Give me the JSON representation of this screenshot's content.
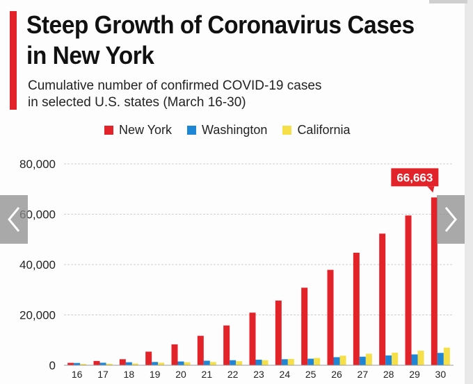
{
  "title_line1": "Steep Growth of Coronavirus Cases",
  "title_line2": "in New York",
  "subtitle_line1": "Cumulative number of confirmed COVID-19 cases",
  "subtitle_line2": "in selected U.S. states (March 16-30)",
  "colors": {
    "new_york": "#e3232a",
    "washington": "#1f86d6",
    "california": "#f5e04a",
    "accent": "#e3232a"
  },
  "nav": {
    "prev_icon": "chevron-left-icon",
    "next_icon": "chevron-right-icon"
  },
  "chart_data": {
    "type": "bar",
    "categories": [
      "16",
      "17",
      "18",
      "19",
      "20",
      "21",
      "22",
      "23",
      "24",
      "25",
      "26",
      "27",
      "28",
      "29",
      "30"
    ],
    "series": [
      {
        "name": "New York",
        "color": "#e3232a",
        "values": [
          950,
          1700,
          2400,
          5400,
          8300,
          11700,
          15800,
          20900,
          25700,
          30800,
          37900,
          44700,
          52300,
          59500,
          66663
        ]
      },
      {
        "name": "Washington",
        "color": "#1f86d6",
        "values": [
          900,
          1000,
          1200,
          1300,
          1500,
          1800,
          2000,
          2200,
          2400,
          2600,
          3200,
          3400,
          3900,
          4300,
          4900
        ]
      },
      {
        "name": "California",
        "color": "#f5e04a",
        "values": [
          500,
          600,
          700,
          1000,
          1200,
          1300,
          1600,
          2000,
          2500,
          2900,
          3800,
          4600,
          5000,
          5800,
          7000
        ]
      }
    ],
    "yticks": [
      "0",
      "20,000",
      "40,000",
      "60,000",
      "80,000"
    ],
    "ylim": [
      0,
      80000
    ],
    "callout": {
      "category": "30",
      "series": "New York",
      "label": "66,663"
    },
    "grid": true,
    "legend_position": "top"
  }
}
